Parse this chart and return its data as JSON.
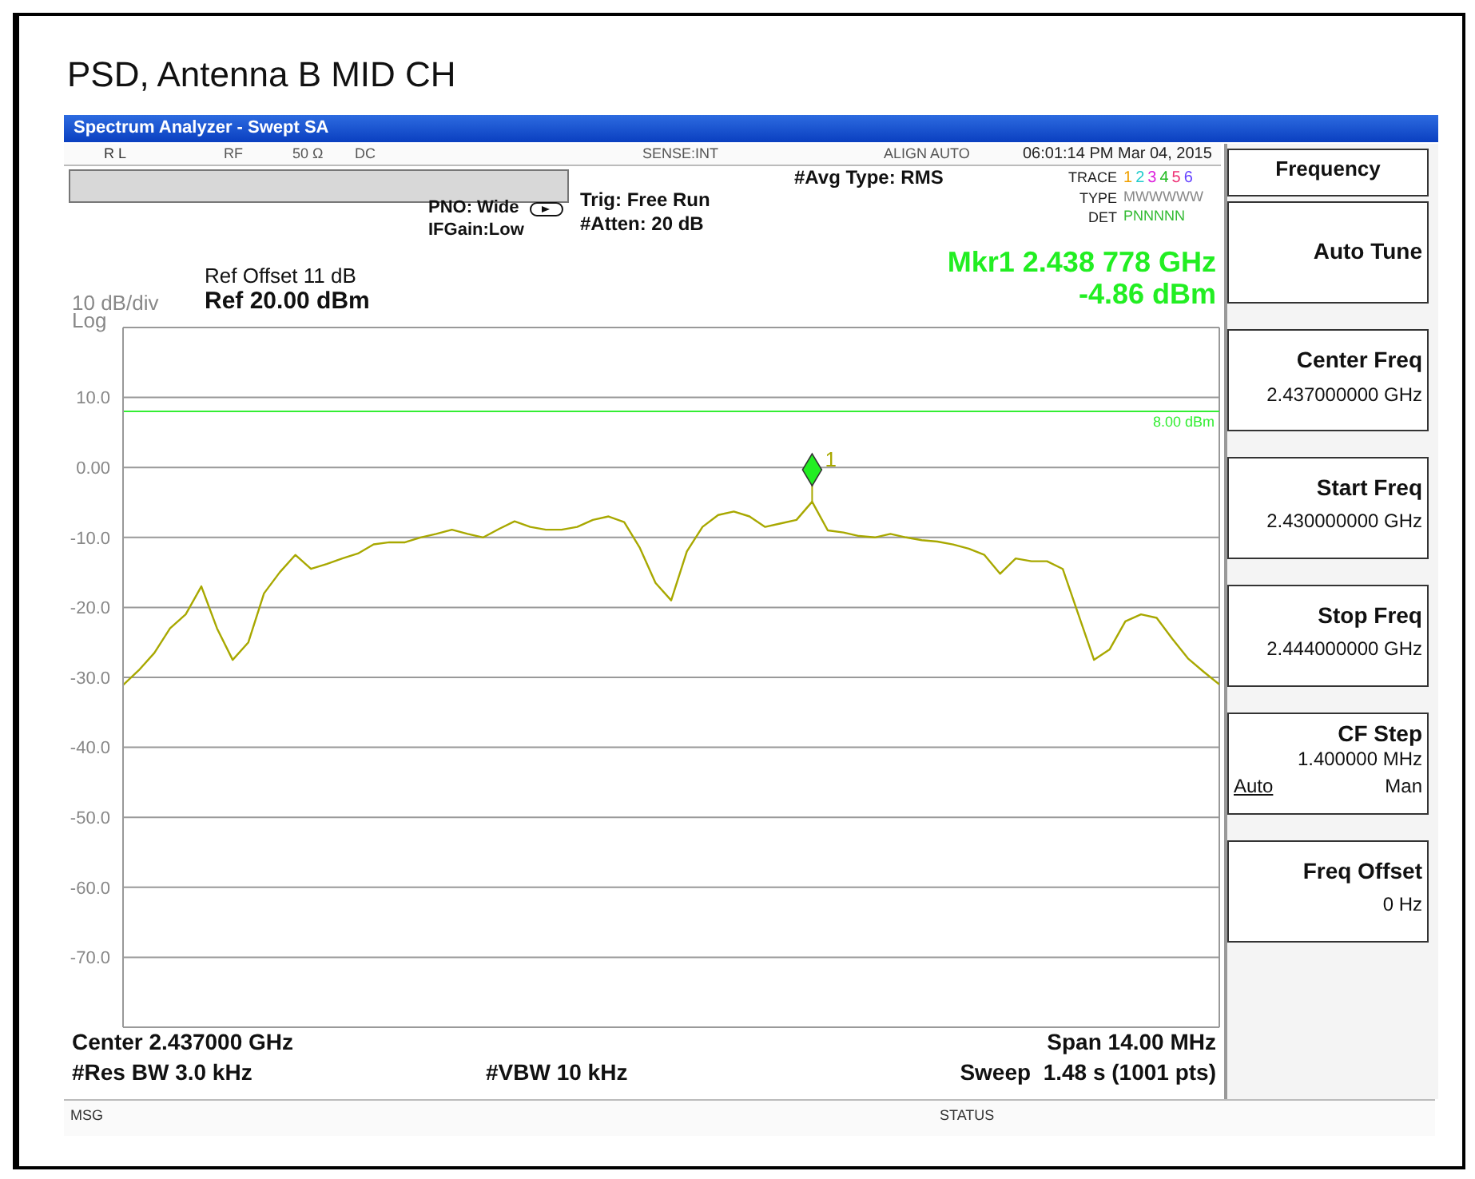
{
  "chart_data": {
    "type": "line",
    "title": "PSD, Antenna B MID CH",
    "categories": [
      null,
      null,
      null,
      null,
      null,
      null,
      null,
      null,
      null,
      null,
      null,
      null,
      null,
      null,
      null,
      null,
      null,
      null,
      null,
      null,
      null,
      null,
      null,
      null,
      null,
      null,
      null,
      null,
      null,
      null,
      null,
      null,
      null,
      null,
      null,
      null,
      null,
      null,
      null,
      null,
      null,
      null,
      null,
      null,
      null,
      null,
      null,
      null,
      null,
      null,
      null,
      null,
      null,
      null,
      null,
      null,
      null,
      null,
      null,
      null,
      null,
      null,
      null,
      null,
      null,
      null,
      null,
      null,
      null,
      null,
      null
    ],
    "series": [
      {
        "color": "#a8a800",
        "values": [
          -31.1,
          -29,
          -26.5,
          -23,
          -21,
          -17,
          -23,
          -27.5,
          -25,
          -18,
          -15,
          -12.5,
          -14.5,
          -13.8,
          -13,
          -12.3,
          -11,
          -10.7,
          -10.7,
          -10,
          -9.5,
          -8.9,
          -9.5,
          -10,
          -8.8,
          -7.7,
          -8.5,
          -8.9,
          -8.9,
          -8.5,
          -7.5,
          -7,
          -7.8,
          -11.5,
          -16.5,
          -19,
          -12,
          -8.5,
          -6.8,
          -6.3,
          -7,
          -8.5,
          -8,
          -7.5,
          -4.9,
          -9,
          -9.3,
          -9.8,
          -10,
          -9.5,
          -10,
          -10.4,
          -10.6,
          -11,
          -11.6,
          -12.5,
          -15.2,
          -13,
          -13.4,
          -13.4,
          -14.5,
          -21,
          -27.5,
          -26,
          -22,
          -21,
          -21.5,
          -24.5,
          -27.3,
          -29.2,
          -31
        ]
      }
    ],
    "ylim": [
      -80,
      20
    ],
    "yticks": [
      {
        "value": 20,
        "label": null
      },
      {
        "value": 10,
        "label": "10.0"
      },
      {
        "value": 0,
        "label": "0.00"
      },
      {
        "value": -10,
        "label": "-10.0"
      },
      {
        "value": -20,
        "label": "-20.0"
      },
      {
        "value": -30,
        "label": "-30.0"
      },
      {
        "value": -40,
        "label": "-40.0"
      },
      {
        "value": -50,
        "label": "-50.0"
      },
      {
        "value": -60,
        "label": "-60.0"
      },
      {
        "value": -70,
        "label": "-70.0"
      },
      {
        "value": -80,
        "label": null
      }
    ],
    "tick_labels": "y",
    "grid": true,
    "marker": "none",
    "line_style": "solid",
    "ref_lines": [
      {
        "axis": "y",
        "value": 8,
        "label": "8.00 dBm",
        "color": "#33ee33"
      }
    ],
    "annotations": [
      "Spectrum Analyzer - Swept SA",
      "R L",
      "RF",
      "50 Ω",
      "DC",
      "SENSE:INT",
      "ALIGN AUTO",
      "06:01:14 PM Mar 04, 2015",
      "PNO: Wide",
      "IFGain:Low",
      "Trig: Free Run",
      "#Atten: 20 dB",
      "#Avg Type: RMS",
      "TRACE",
      "123456",
      "TYPE",
      "MWWWWW",
      "DET",
      "PNNNNN",
      "Ref Offset 11 dB",
      "Ref 20.00 dBm",
      "10 dB/div",
      "Log",
      "Mkr1 2.438 778 GHz",
      "-4.86 dBm",
      "Center 2.437000 GHz",
      "Span 14.00 MHz",
      "#Res BW 3.0 kHz",
      "#VBW 10 kHz",
      "Sweep  1.48 s (1001 pts)",
      "MSG",
      "STATUS",
      "Frequency",
      "Auto Tune",
      "Center Freq",
      "2.437000000 GHz",
      "Start Freq",
      "2.430000000 GHz",
      "Stop Freq",
      "2.444000000 GHz",
      "CF Step",
      "1.400000 MHz",
      "Auto",
      "Man",
      "Freq Offset",
      "0 Hz",
      "1"
    ]
  }
}
